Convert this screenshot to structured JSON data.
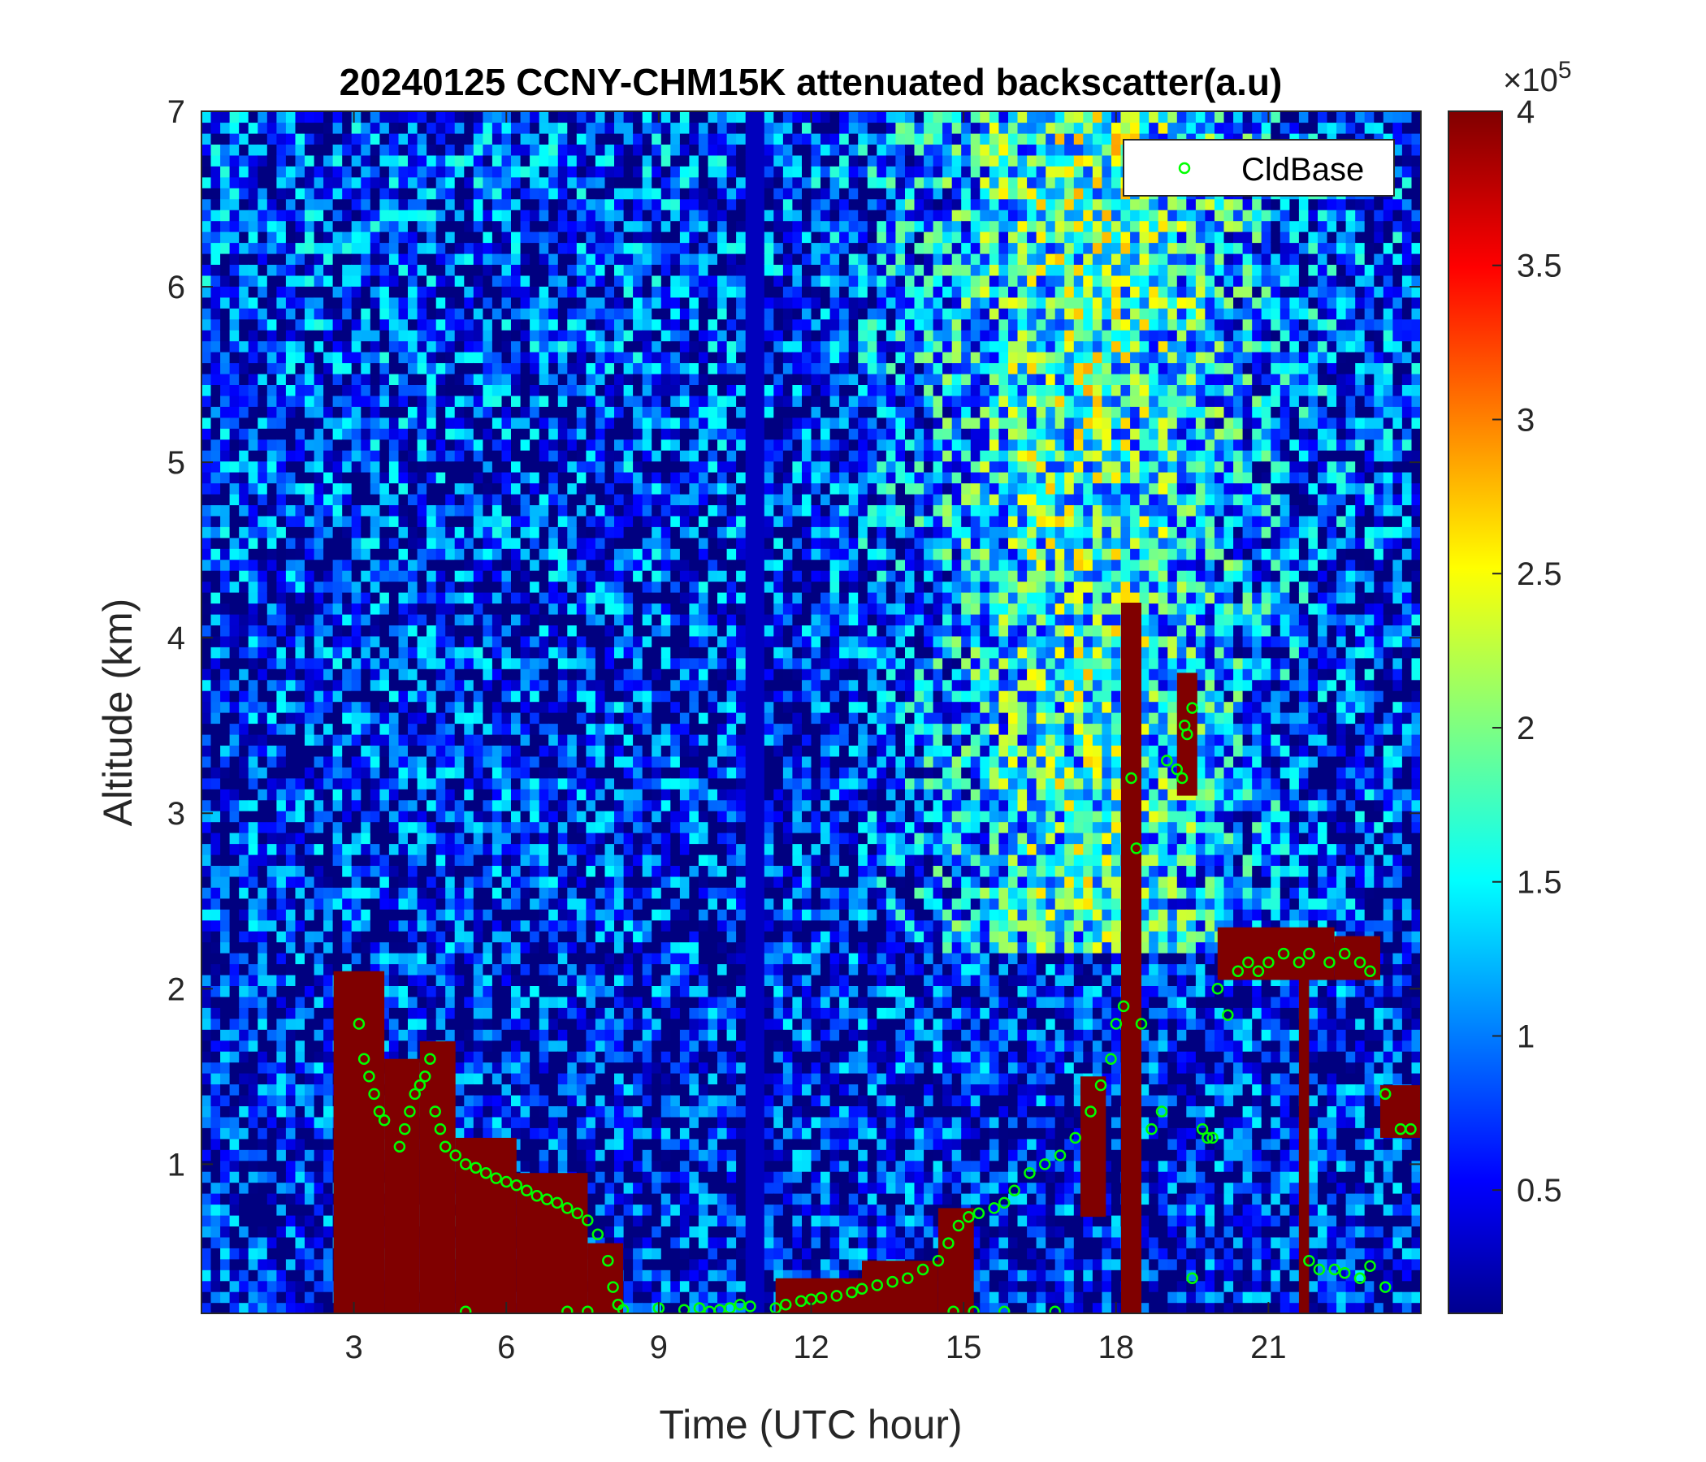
{
  "chart_data": {
    "type": "heatmap",
    "title": "20240125 CCNY-CHM15K attenuated backscatter(a.u)",
    "xlabel": "Time (UTC hour)",
    "ylabel": "Altitude (km)",
    "xlim": [
      0,
      24
    ],
    "ylim": [
      0.15,
      7
    ],
    "xticks": [
      3,
      6,
      9,
      12,
      15,
      18,
      21
    ],
    "xtick_labels": [
      "3",
      "6",
      "9",
      "12",
      "15",
      "18",
      "21"
    ],
    "yticks": [
      1,
      2,
      3,
      4,
      5,
      6,
      7
    ],
    "ytick_labels": [
      "1",
      "2",
      "3",
      "4",
      "5",
      "6",
      "7"
    ],
    "colorbar": {
      "colormap": "jet",
      "range": [
        10000,
        400000
      ],
      "ticks": [
        50000,
        100000,
        150000,
        200000,
        250000,
        300000,
        350000,
        400000
      ],
      "tick_labels": [
        "0.5",
        "1",
        "1.5",
        "2",
        "2.5",
        "3",
        "3.5",
        "4"
      ],
      "exponent_label": "×10",
      "exponent_power": "5"
    },
    "legend": {
      "position": "top-right",
      "entries": [
        {
          "name": "CldBase",
          "marker": "circle",
          "color": "#00ff00"
        }
      ]
    },
    "series": [
      {
        "name": "CldBase",
        "x": [
          3.1,
          3.2,
          3.3,
          3.4,
          3.5,
          3.6,
          3.9,
          4.0,
          4.1,
          4.2,
          4.3,
          4.4,
          4.5,
          4.6,
          4.7,
          4.8,
          5.0,
          5.2,
          5.4,
          5.6,
          5.8,
          6.0,
          6.2,
          6.4,
          6.6,
          6.8,
          7.0,
          7.2,
          7.4,
          7.6,
          7.8,
          8.0,
          8.1,
          8.2,
          8.3,
          9.0,
          9.5,
          9.8,
          10.0,
          10.2,
          10.4,
          10.6,
          10.8,
          11.3,
          11.5,
          11.8,
          12.0,
          12.2,
          12.5,
          12.8,
          13.0,
          13.3,
          13.6,
          13.9,
          14.2,
          14.5,
          14.7,
          14.9,
          15.1,
          15.3,
          15.6,
          15.8,
          16.0,
          16.3,
          16.6,
          16.9,
          17.2,
          17.5,
          17.7,
          17.9,
          18.0,
          18.15,
          18.3,
          18.4,
          18.5,
          18.7,
          18.9,
          19.0,
          19.2,
          19.3,
          19.35,
          19.4,
          19.5,
          19.7,
          19.8,
          19.9,
          20.0,
          20.2,
          20.4,
          20.6,
          20.8,
          21.0,
          21.3,
          21.6,
          21.8,
          22.2,
          22.5,
          22.8,
          23.0,
          23.3,
          23.6,
          23.8,
          21.8,
          22.0,
          22.3,
          22.5,
          22.8,
          23.0,
          23.3,
          7.2,
          7.6,
          5.2,
          14.8,
          15.2,
          15.8,
          16.8,
          19.5
        ],
        "y": [
          1.8,
          1.6,
          1.5,
          1.4,
          1.3,
          1.25,
          1.1,
          1.2,
          1.3,
          1.4,
          1.45,
          1.5,
          1.6,
          1.3,
          1.2,
          1.1,
          1.05,
          1.0,
          0.98,
          0.95,
          0.92,
          0.9,
          0.88,
          0.85,
          0.82,
          0.8,
          0.78,
          0.75,
          0.72,
          0.68,
          0.6,
          0.45,
          0.3,
          0.2,
          0.17,
          0.18,
          0.17,
          0.18,
          0.16,
          0.17,
          0.18,
          0.2,
          0.19,
          0.18,
          0.2,
          0.22,
          0.23,
          0.24,
          0.25,
          0.27,
          0.29,
          0.31,
          0.33,
          0.35,
          0.4,
          0.45,
          0.55,
          0.65,
          0.7,
          0.72,
          0.75,
          0.78,
          0.85,
          0.95,
          1.0,
          1.05,
          1.15,
          1.3,
          1.45,
          1.6,
          1.8,
          1.9,
          3.2,
          2.8,
          1.8,
          1.2,
          1.3,
          3.3,
          3.25,
          3.2,
          3.5,
          3.45,
          3.6,
          1.2,
          1.15,
          1.15,
          2.0,
          1.85,
          2.1,
          2.15,
          2.1,
          2.15,
          2.2,
          2.15,
          2.2,
          2.15,
          2.2,
          2.15,
          2.1,
          1.4,
          1.2,
          1.2,
          0.45,
          0.4,
          0.4,
          0.38,
          0.35,
          0.42,
          0.3,
          0.16,
          0.16,
          0.16,
          0.16,
          0.16,
          0.16,
          0.16,
          0.35
        ]
      }
    ]
  }
}
